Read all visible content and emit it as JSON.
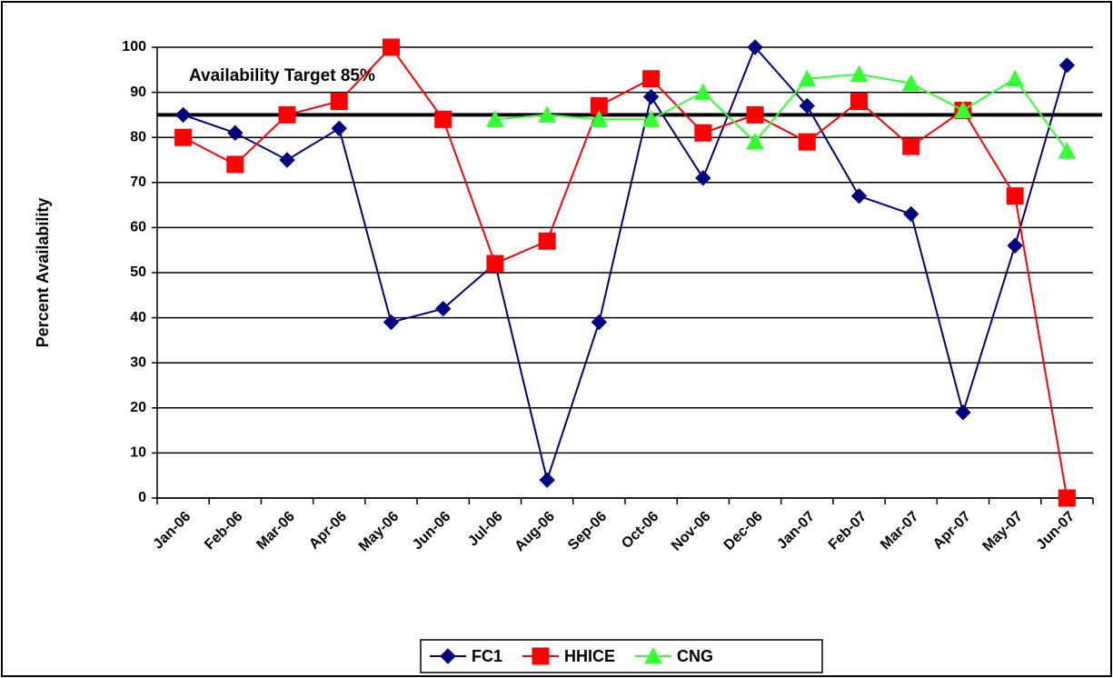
{
  "chart_data": {
    "type": "line",
    "y_label": "Percent Availability",
    "categories": [
      "Jan-06",
      "Feb-06",
      "Mar-06",
      "Apr-06",
      "May-06",
      "Jun-06",
      "Jul-06",
      "Aug-06",
      "Sep-06",
      "Oct-06",
      "Nov-06",
      "Dec-06",
      "Jan-07",
      "Feb-07",
      "Mar-07",
      "Apr-07",
      "May-07",
      "Jun-07"
    ],
    "series": [
      {
        "name": "FC1",
        "color": "#000080",
        "marker": "diamond",
        "values": [
          85,
          81,
          75,
          82,
          39,
          42,
          52,
          4,
          39,
          89,
          71,
          100,
          87,
          67,
          63,
          19,
          56,
          96
        ]
      },
      {
        "name": "HHICE",
        "color": "#ff0000",
        "marker": "square",
        "values": [
          80,
          74,
          85,
          88,
          100,
          84,
          52,
          57,
          87,
          93,
          81,
          85,
          79,
          88,
          78,
          86,
          67,
          0
        ]
      },
      {
        "name": "CNG",
        "color": "#33ff33",
        "marker": "triangle",
        "values": [
          null,
          null,
          null,
          null,
          null,
          null,
          84,
          85,
          84,
          84,
          90,
          79,
          93,
          94,
          92,
          86,
          93,
          77
        ]
      }
    ],
    "target_line": {
      "value": 85,
      "label": "Availability Target 85%"
    },
    "ylim": [
      0,
      100
    ],
    "yticks": [
      0,
      10,
      20,
      30,
      40,
      50,
      60,
      70,
      80,
      90,
      100
    ],
    "grid": true,
    "legend": "bottom"
  }
}
